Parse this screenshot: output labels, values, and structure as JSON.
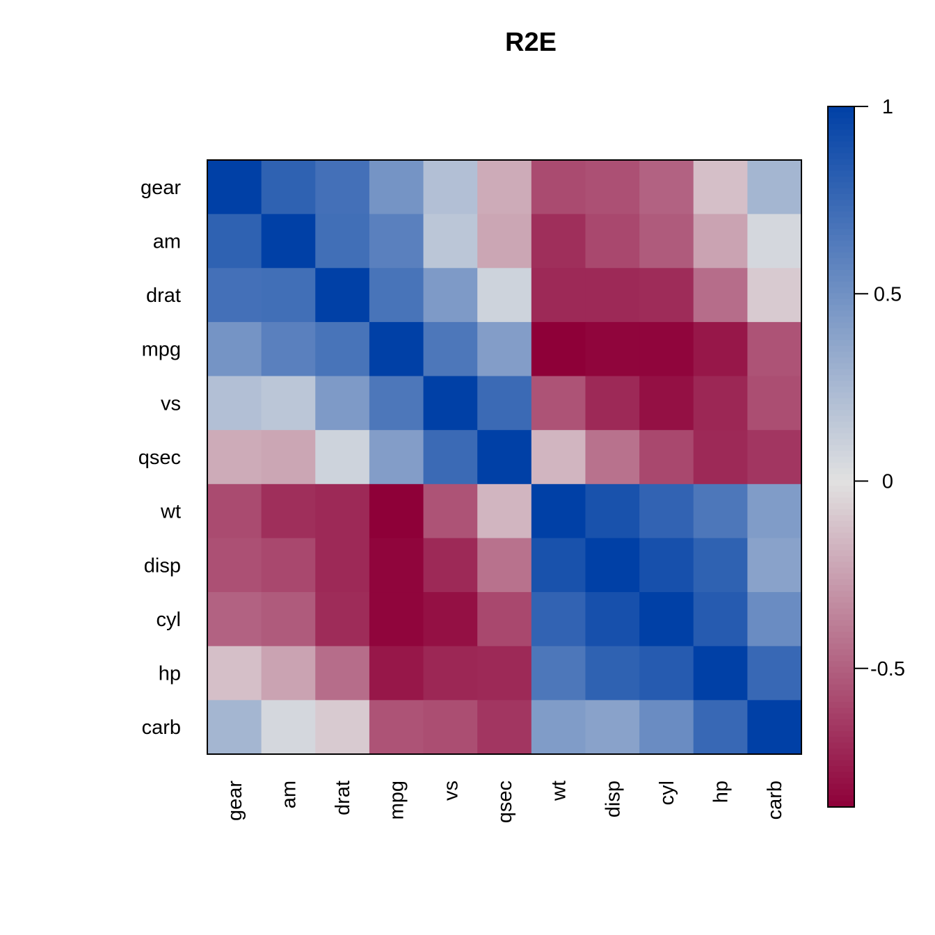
{
  "chart_data": {
    "type": "heatmap",
    "title": "R2E",
    "xlabel": "",
    "ylabel": "",
    "rows": [
      "gear",
      "am",
      "drat",
      "mpg",
      "vs",
      "qsec",
      "wt",
      "disp",
      "cyl",
      "hp",
      "carb"
    ],
    "cols": [
      "gear",
      "am",
      "drat",
      "mpg",
      "vs",
      "qsec",
      "wt",
      "disp",
      "cyl",
      "hp",
      "carb"
    ],
    "values": [
      [
        1.0,
        0.79,
        0.7,
        0.48,
        0.21,
        -0.21,
        -0.58,
        -0.56,
        -0.49,
        -0.13,
        0.27
      ],
      [
        0.79,
        1.0,
        0.71,
        0.6,
        0.17,
        -0.23,
        -0.69,
        -0.59,
        -0.52,
        -0.24,
        0.06
      ],
      [
        0.7,
        0.71,
        1.0,
        0.68,
        0.44,
        0.09,
        -0.71,
        -0.71,
        -0.7,
        -0.45,
        -0.09
      ],
      [
        0.48,
        0.6,
        0.68,
        1.0,
        0.66,
        0.42,
        -0.87,
        -0.85,
        -0.85,
        -0.78,
        -0.55
      ],
      [
        0.21,
        0.17,
        0.44,
        0.66,
        1.0,
        0.74,
        -0.55,
        -0.71,
        -0.81,
        -0.72,
        -0.57
      ],
      [
        -0.21,
        -0.23,
        0.09,
        0.42,
        0.74,
        1.0,
        -0.17,
        -0.43,
        -0.59,
        -0.71,
        -0.66
      ],
      [
        -0.58,
        -0.69,
        -0.71,
        -0.87,
        -0.55,
        -0.17,
        1.0,
        0.89,
        0.78,
        0.66,
        0.43
      ],
      [
        -0.56,
        -0.59,
        -0.71,
        -0.85,
        -0.71,
        -0.43,
        0.89,
        1.0,
        0.9,
        0.79,
        0.39
      ],
      [
        -0.49,
        -0.52,
        -0.7,
        -0.85,
        -0.81,
        -0.59,
        0.78,
        0.9,
        1.0,
        0.83,
        0.53
      ],
      [
        -0.13,
        -0.24,
        -0.45,
        -0.78,
        -0.72,
        -0.71,
        0.66,
        0.79,
        0.83,
        1.0,
        0.75
      ],
      [
        0.27,
        0.06,
        -0.09,
        -0.55,
        -0.57,
        -0.66,
        0.43,
        0.39,
        0.53,
        0.75,
        1.0
      ]
    ],
    "scale": {
      "min": -0.87,
      "max": 1.0,
      "ticks": [
        1,
        0.5,
        0,
        -0.5
      ],
      "tick_labels": [
        "1",
        "0.5",
        "0",
        "-0.5"
      ]
    },
    "colors": {
      "low": "#8E0038",
      "mid": "#E1E1E1",
      "high": "#0040A6"
    },
    "legend": "right",
    "grid": false
  }
}
